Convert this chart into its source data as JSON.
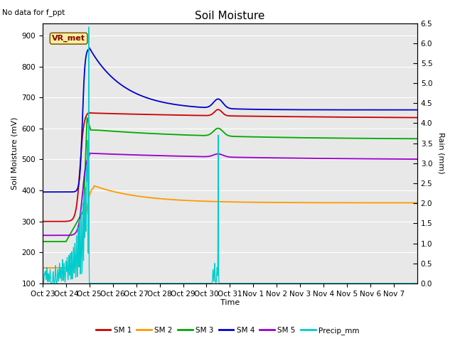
{
  "title": "Soil Moisture",
  "subtitle": "No data for f_ppt",
  "ylabel_left": "Soil Moisture (mV)",
  "ylabel_right": "Rain (mm)",
  "xlabel": "Time",
  "station_label": "VR_met",
  "ylim_left": [
    100,
    940
  ],
  "ylim_right": [
    0.0,
    6.5
  ],
  "yticks_left": [
    100,
    200,
    300,
    400,
    500,
    600,
    700,
    800,
    900
  ],
  "yticks_right": [
    0.0,
    0.5,
    1.0,
    1.5,
    2.0,
    2.5,
    3.0,
    3.5,
    4.0,
    4.5,
    5.0,
    5.5,
    6.0,
    6.5
  ],
  "xtick_labels": [
    "Oct 23",
    "Oct 24",
    "Oct 25",
    "Oct 26",
    "Oct 27",
    "Oct 28",
    "Oct 29",
    "Oct 30",
    "Oct 31",
    "Nov 1",
    "Nov 2",
    "Nov 3",
    "Nov 4",
    "Nov 5",
    "Nov 6",
    "Nov 7"
  ],
  "background_color": "#e8e8e8",
  "colors": {
    "SM1": "#cc0000",
    "SM2": "#ff9900",
    "SM3": "#00aa00",
    "SM4": "#0000cc",
    "SM5": "#9900cc",
    "Precip": "#00cccc"
  },
  "legend_labels": [
    "SM 1",
    "SM 2",
    "SM 3",
    "SM 4",
    "SM 5",
    "Precip_mm"
  ],
  "figsize": [
    6.4,
    4.8
  ],
  "dpi": 100
}
